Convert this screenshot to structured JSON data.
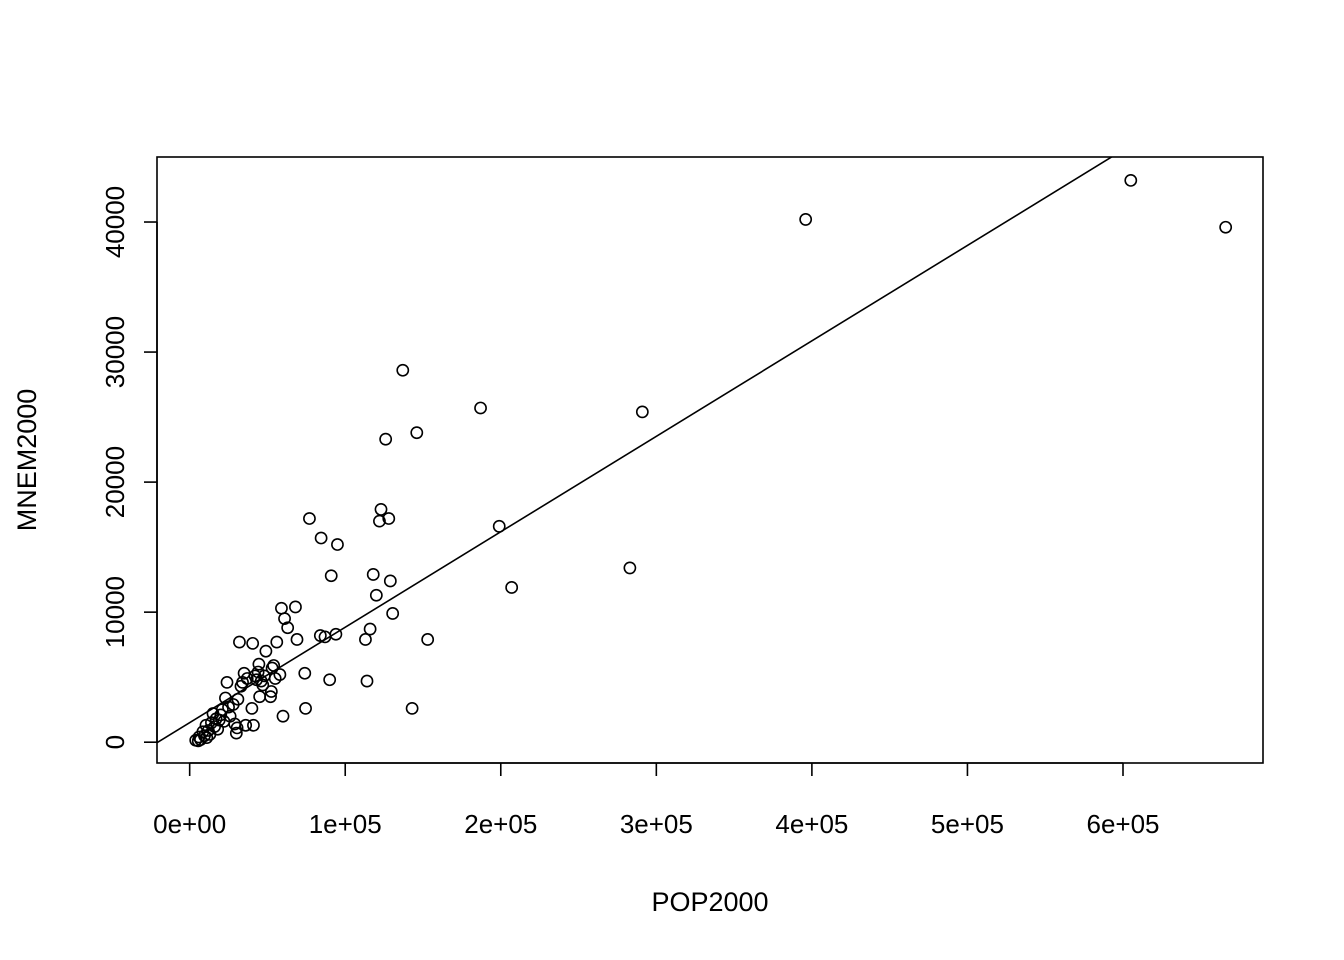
{
  "chart_data": {
    "type": "scatter",
    "title": "",
    "xlabel": "POP2000",
    "ylabel": "MNEM2000",
    "xlim": [
      -21000,
      690000
    ],
    "ylim": [
      -1600,
      45000
    ],
    "xticks": [
      0,
      100000,
      200000,
      300000,
      400000,
      500000,
      600000
    ],
    "xtick_labels": [
      "0e+00",
      "1e+05",
      "2e+05",
      "3e+05",
      "4e+05",
      "5e+05",
      "6e+05"
    ],
    "yticks": [
      0,
      10000,
      20000,
      30000,
      40000
    ],
    "ytick_labels": [
      "0",
      "10000",
      "20000",
      "30000",
      "40000"
    ],
    "grid": false,
    "legend": "none",
    "marker": "open-circle",
    "regression_line": {
      "intercept": 1500,
      "slope": 0.0734
    },
    "points": [
      [
        3900,
        150
      ],
      [
        5500,
        100
      ],
      [
        6000,
        400
      ],
      [
        7000,
        200
      ],
      [
        8500,
        800
      ],
      [
        9500,
        500
      ],
      [
        10500,
        1300
      ],
      [
        11000,
        350
      ],
      [
        12000,
        900
      ],
      [
        13000,
        600
      ],
      [
        14000,
        1500
      ],
      [
        15000,
        2200
      ],
      [
        16000,
        1200
      ],
      [
        17000,
        1800
      ],
      [
        18000,
        1000
      ],
      [
        19000,
        1700
      ],
      [
        20000,
        2100
      ],
      [
        21000,
        2500
      ],
      [
        22000,
        1600
      ],
      [
        23000,
        3400
      ],
      [
        24000,
        4600
      ],
      [
        25000,
        2700
      ],
      [
        26000,
        2000
      ],
      [
        28000,
        2900
      ],
      [
        29000,
        1400
      ],
      [
        30000,
        700
      ],
      [
        30500,
        1100
      ],
      [
        31000,
        3300
      ],
      [
        32000,
        7700
      ],
      [
        33000,
        4300
      ],
      [
        34000,
        4600
      ],
      [
        35000,
        5300
      ],
      [
        36000,
        1300
      ],
      [
        37000,
        4900
      ],
      [
        40000,
        2600
      ],
      [
        40500,
        7600
      ],
      [
        41000,
        1300
      ],
      [
        42000,
        5100
      ],
      [
        43000,
        4800
      ],
      [
        44000,
        5400
      ],
      [
        44500,
        6000
      ],
      [
        45000,
        3500
      ],
      [
        46000,
        4700
      ],
      [
        47000,
        4400
      ],
      [
        48000,
        5100
      ],
      [
        49000,
        7000
      ],
      [
        52000,
        3500
      ],
      [
        52500,
        3900
      ],
      [
        53000,
        5700
      ],
      [
        54000,
        5900
      ],
      [
        55000,
        4900
      ],
      [
        56000,
        7700
      ],
      [
        58000,
        5200
      ],
      [
        59000,
        10300
      ],
      [
        60000,
        2000
      ],
      [
        61000,
        9500
      ],
      [
        63000,
        8800
      ],
      [
        68000,
        10400
      ],
      [
        69000,
        7900
      ],
      [
        74000,
        5300
      ],
      [
        74500,
        2600
      ],
      [
        77000,
        17200
      ],
      [
        84000,
        8200
      ],
      [
        84500,
        15700
      ],
      [
        87000,
        8100
      ],
      [
        90000,
        4800
      ],
      [
        91000,
        12800
      ],
      [
        94000,
        8300
      ],
      [
        95000,
        15200
      ],
      [
        113000,
        7900
      ],
      [
        114000,
        4700
      ],
      [
        116000,
        8700
      ],
      [
        118000,
        12900
      ],
      [
        120000,
        11300
      ],
      [
        122000,
        17000
      ],
      [
        123000,
        17900
      ],
      [
        126000,
        23300
      ],
      [
        128000,
        17200
      ],
      [
        129000,
        12400
      ],
      [
        130500,
        9900
      ],
      [
        137000,
        28600
      ],
      [
        143000,
        2600
      ],
      [
        146000,
        23800
      ],
      [
        153000,
        7900
      ],
      [
        187000,
        25700
      ],
      [
        199000,
        16600
      ],
      [
        207000,
        11900
      ],
      [
        283000,
        13400
      ],
      [
        291000,
        25400
      ],
      [
        396000,
        40200
      ],
      [
        605000,
        43200
      ],
      [
        666000,
        39600
      ]
    ]
  }
}
